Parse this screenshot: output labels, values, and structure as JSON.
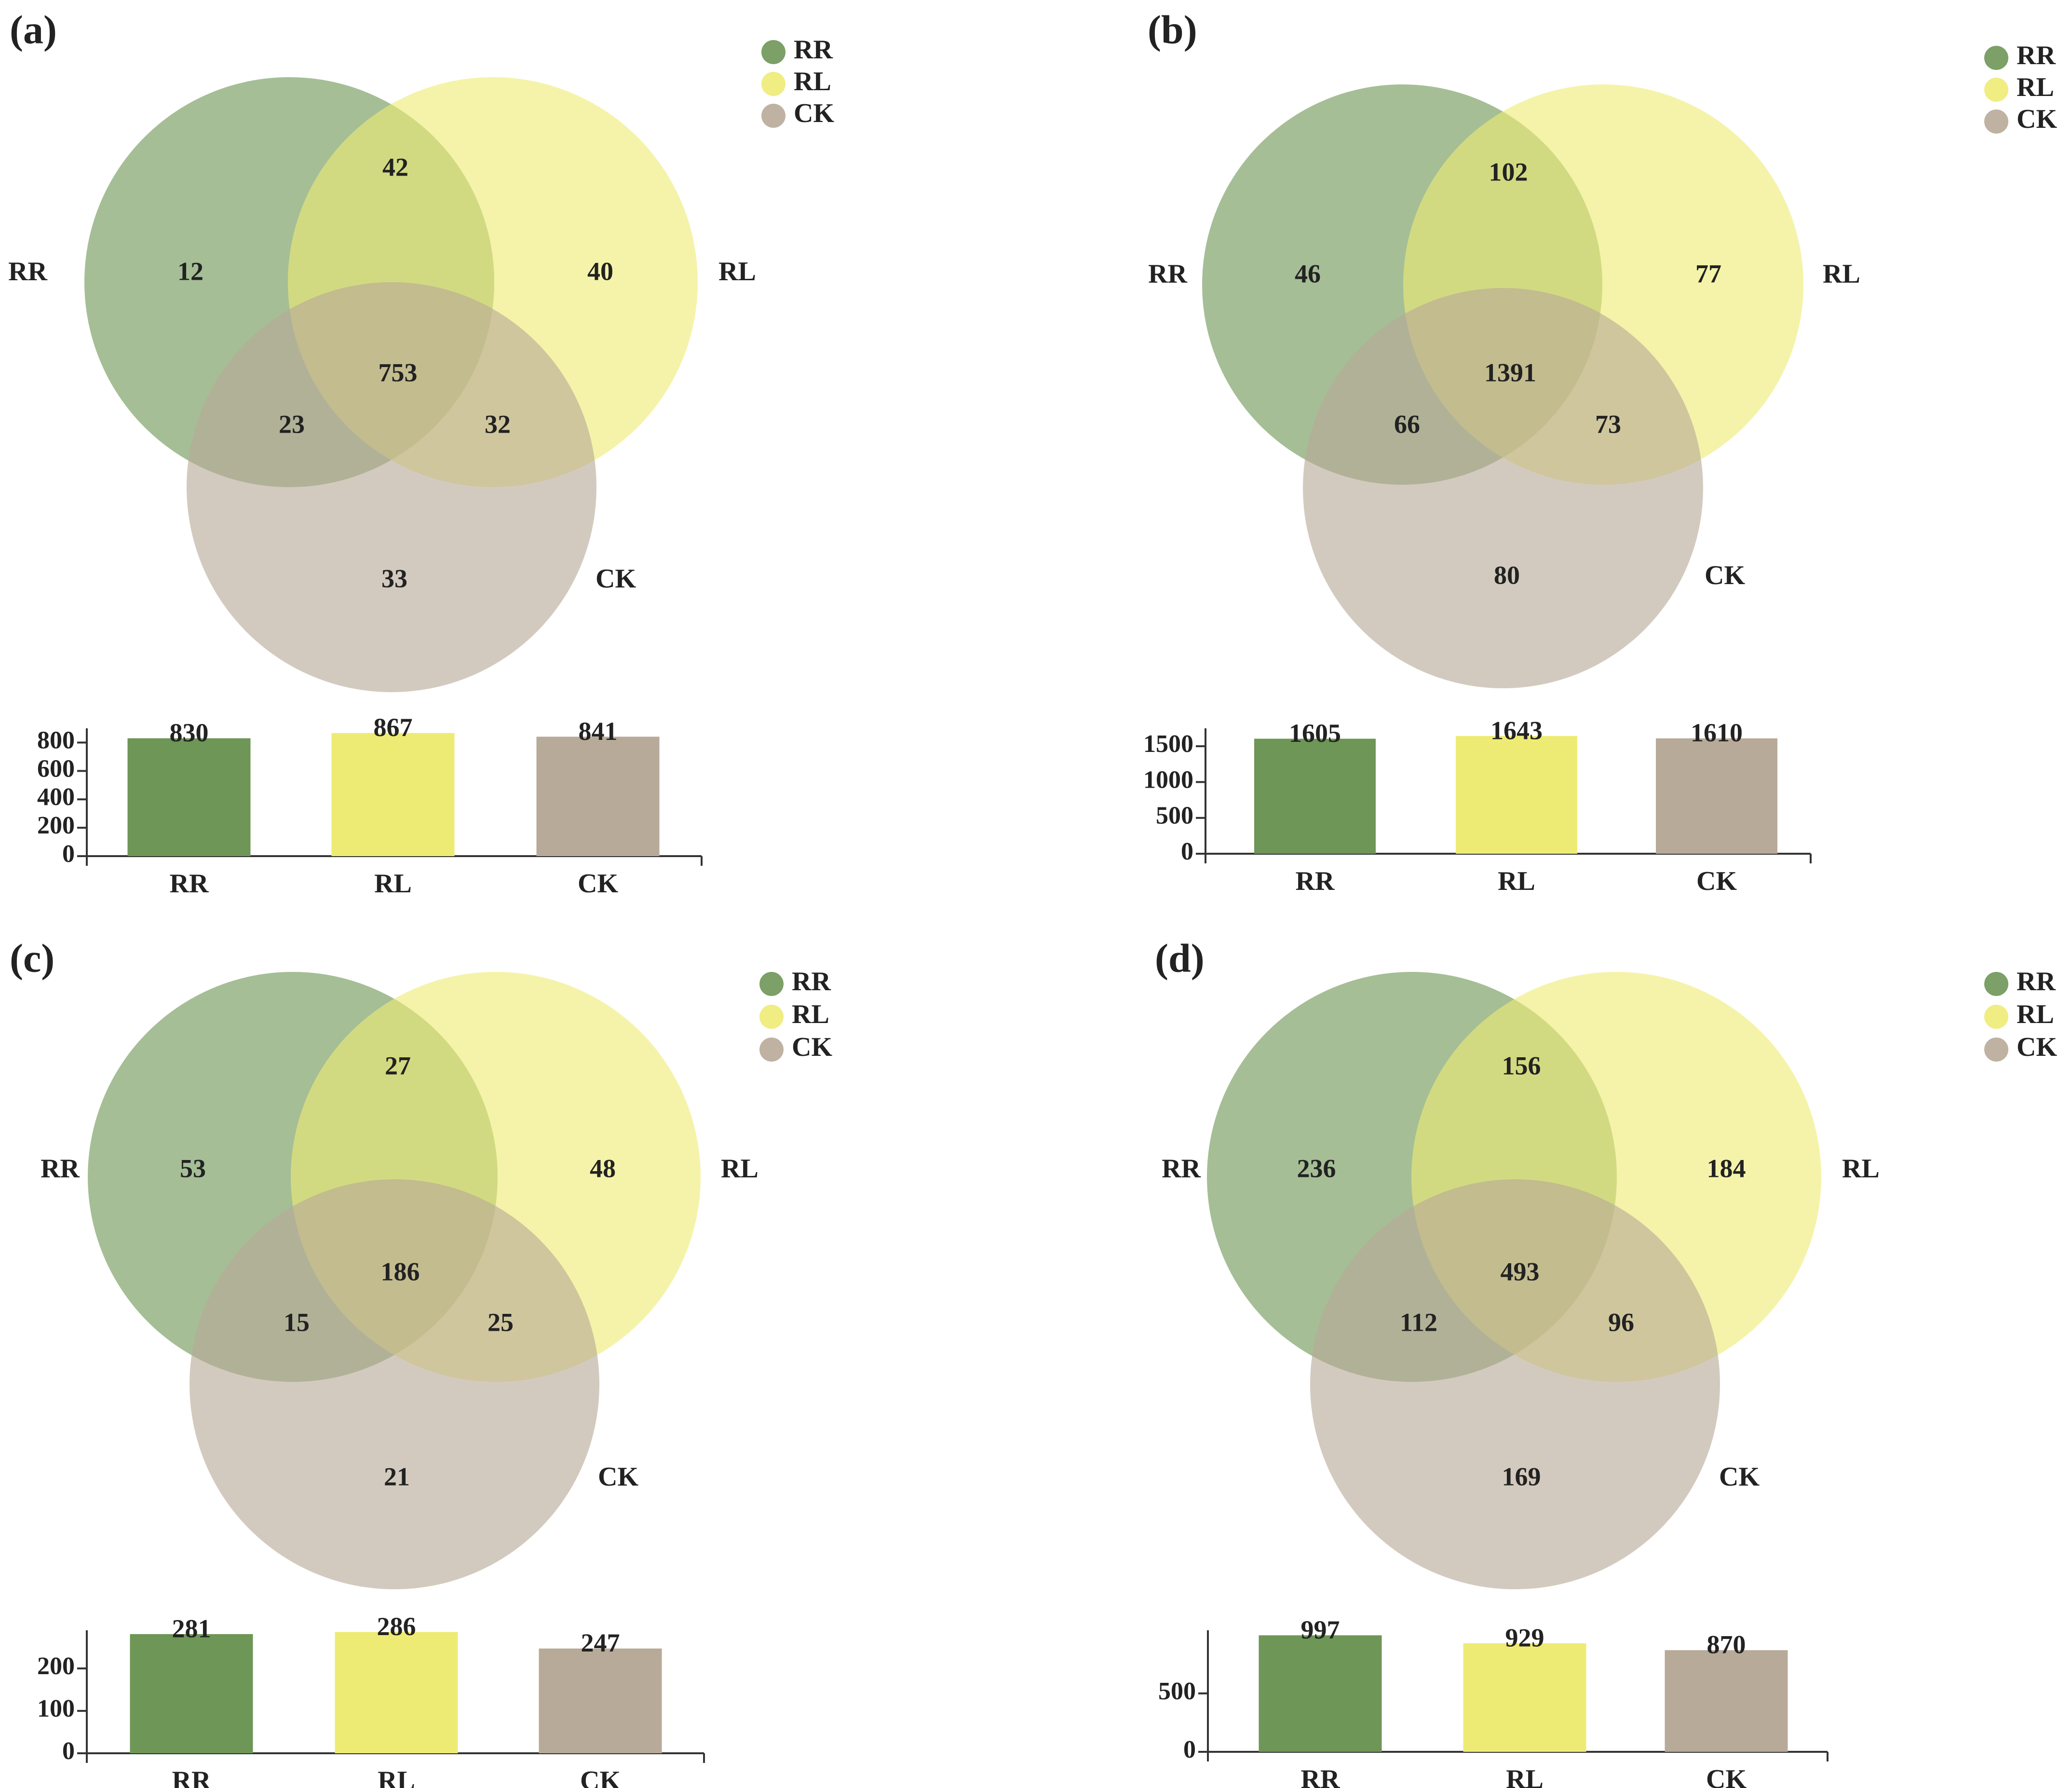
{
  "colors": {
    "RR": "#6e9656",
    "RL": "#eeeb74",
    "CK": "#b8aa98"
  },
  "chart_data": [
    {
      "type": "venn3+bar",
      "panel": "(a)",
      "sets": [
        "RR",
        "RL",
        "CK"
      ],
      "legend": [
        "RR",
        "RL",
        "CK"
      ],
      "regions": {
        "RR_only": "12",
        "RL_only": "40",
        "CK_only": "33",
        "RR_RL": "42",
        "RR_CK": "23",
        "RL_CK": "32",
        "all": "753"
      },
      "bar": {
        "categories": [
          "RR",
          "RL",
          "CK"
        ],
        "values": [
          830,
          867,
          841
        ],
        "ylim": [
          0,
          900
        ],
        "yticks": [
          "0",
          "200",
          "400",
          "600",
          "800"
        ]
      }
    },
    {
      "type": "venn3+bar",
      "panel": "(b)",
      "sets": [
        "RR",
        "RL",
        "CK"
      ],
      "legend": [
        "RR",
        "RL",
        "CK"
      ],
      "regions": {
        "RR_only": "46",
        "RL_only": "77",
        "CK_only": "80",
        "RR_RL": "102",
        "RR_CK": "66",
        "RL_CK": "73",
        "all": "1391"
      },
      "bar": {
        "categories": [
          "RR",
          "RL",
          "CK"
        ],
        "values": [
          1605,
          1643,
          1610
        ],
        "ylim": [
          0,
          1750
        ],
        "yticks": [
          "0",
          "500",
          "1000",
          "1500"
        ]
      }
    },
    {
      "type": "venn3+bar",
      "panel": "(c)",
      "sets": [
        "RR",
        "RL",
        "CK"
      ],
      "legend": [
        "RR",
        "RL",
        "CK"
      ],
      "regions": {
        "RR_only": "53",
        "RL_only": "48",
        "CK_only": "21",
        "RR_RL": "27",
        "RR_CK": "15",
        "RL_CK": "25",
        "all": "186"
      },
      "bar": {
        "categories": [
          "RR",
          "RL",
          "CK"
        ],
        "values": [
          281,
          286,
          247
        ],
        "ylim": [
          0,
          290
        ],
        "yticks": [
          "0",
          "100",
          "200"
        ]
      }
    },
    {
      "type": "venn3+bar",
      "panel": "(d)",
      "sets": [
        "RR",
        "RL",
        "CK"
      ],
      "legend": [
        "RR",
        "RL",
        "CK"
      ],
      "regions": {
        "RR_only": "236",
        "RL_only": "184",
        "CK_only": "169",
        "RR_RL": "156",
        "RR_CK": "112",
        "RL_CK": "96",
        "all": "493"
      },
      "bar": {
        "categories": [
          "RR",
          "RL",
          "CK"
        ],
        "values": [
          997,
          929,
          870
        ],
        "ylim": [
          0,
          1040
        ],
        "yticks": [
          "0",
          "500"
        ]
      }
    }
  ]
}
